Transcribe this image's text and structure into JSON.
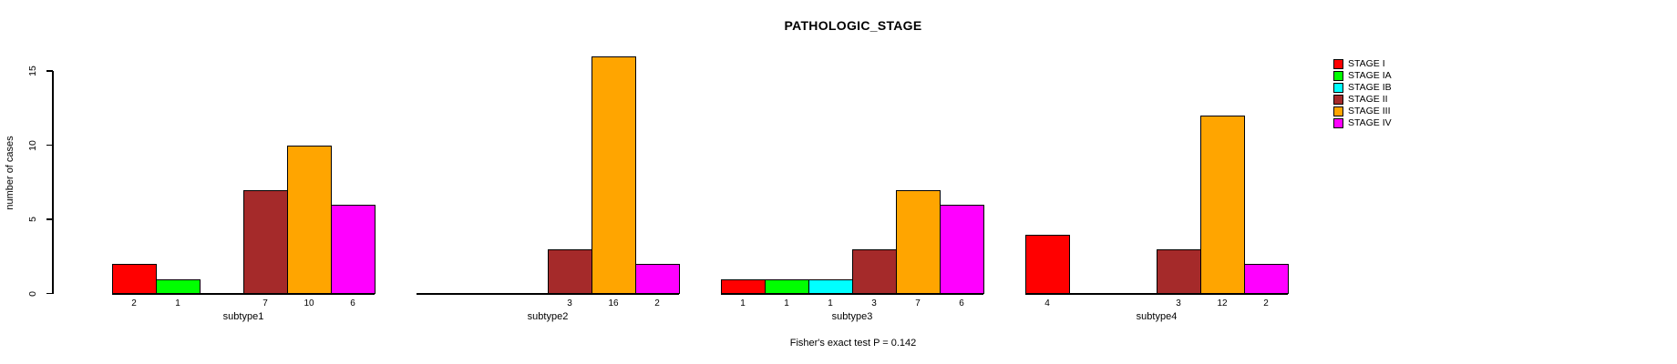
{
  "title": "PATHOLOGIC_STAGE",
  "ylabel": "number of cases",
  "footer": "Fisher's exact test P = 0.142",
  "colors": {
    "axis": "#000000",
    "background": "#ffffff",
    "stage_i": "#FF0000",
    "stage_ia": "#00FF00",
    "stage_ib": "#00FFFF",
    "stage_ii": "#A52A2A",
    "stage_iii": "#FFA500",
    "stage_iv": "#FF00FF"
  },
  "chart_data": {
    "type": "bar",
    "title": "PATHOLOGIC_STAGE",
    "xlabel": "",
    "ylabel": "number of cases",
    "annotation": "Fisher's exact test P = 0.142",
    "categories": [
      "subtype1",
      "subtype2",
      "subtype3",
      "subtype4"
    ],
    "series": [
      {
        "name": "STAGE I",
        "color": "#FF0000",
        "values": [
          2,
          0,
          1,
          4
        ]
      },
      {
        "name": "STAGE IA",
        "color": "#00FF00",
        "values": [
          1,
          0,
          1,
          0
        ]
      },
      {
        "name": "STAGE IB",
        "color": "#00FFFF",
        "values": [
          0,
          0,
          1,
          0
        ]
      },
      {
        "name": "STAGE II",
        "color": "#A52A2A",
        "values": [
          7,
          3,
          3,
          3
        ]
      },
      {
        "name": "STAGE III",
        "color": "#FFA500",
        "values": [
          10,
          16,
          7,
          12
        ]
      },
      {
        "name": "STAGE IV",
        "color": "#FF00FF",
        "values": [
          6,
          2,
          6,
          2
        ]
      }
    ],
    "yticks": [
      0,
      5,
      10,
      15
    ],
    "ylim": [
      0,
      16
    ],
    "grid": false,
    "bar_value_labels": true,
    "zero_value_bars_hidden": true,
    "legend_position": "right",
    "legend_entries": [
      "STAGE I",
      "STAGE IA",
      "STAGE IB",
      "STAGE II",
      "STAGE III",
      "STAGE IV"
    ]
  }
}
